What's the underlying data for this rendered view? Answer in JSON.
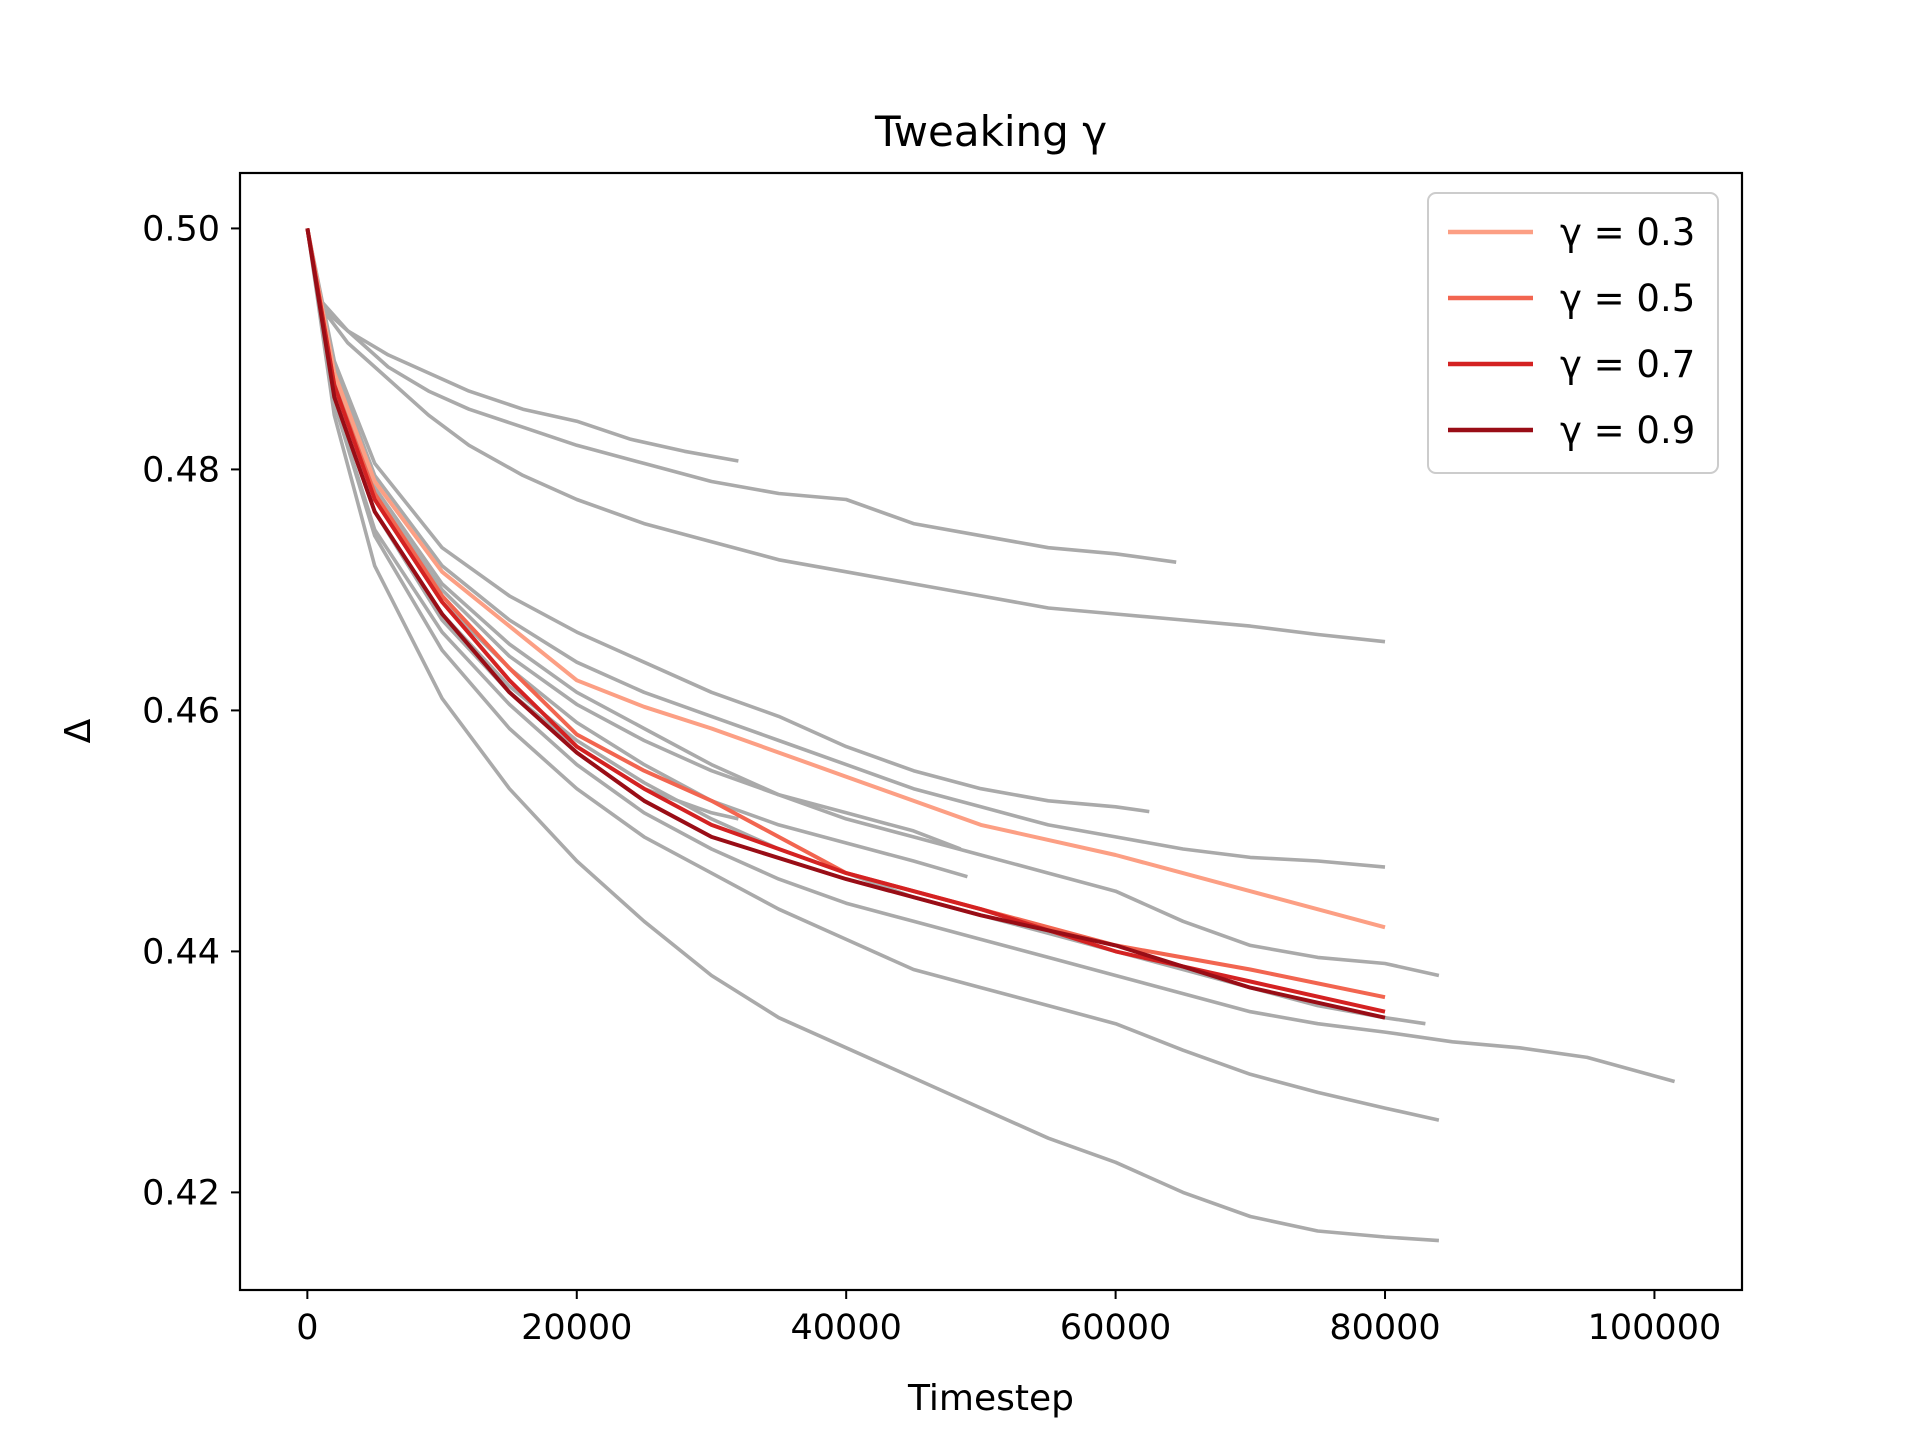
{
  "chart_data": {
    "type": "line",
    "title": "Tweaking γ",
    "xlabel": "Timestep",
    "ylabel": "Δ",
    "xlim": [
      -5000,
      106500
    ],
    "ylim": [
      0.4119,
      0.5046
    ],
    "x_ticks": [
      0,
      20000,
      40000,
      60000,
      80000,
      100000
    ],
    "x_tick_labels": [
      "0",
      "20000",
      "40000",
      "60000",
      "80000",
      "100000"
    ],
    "y_ticks": [
      0.42,
      0.44,
      0.46,
      0.48,
      0.5
    ],
    "y_tick_labels": [
      "0.42",
      "0.44",
      "0.46",
      "0.48",
      "0.50"
    ],
    "grid": false,
    "legend_position": "top-right",
    "series": [
      {
        "name": "γ = 0.3",
        "color": "#fc9f84",
        "x": [
          0,
          2000,
          5000,
          10000,
          15000,
          20000,
          25000,
          30000,
          40000,
          50000,
          60000,
          70000,
          80000
        ],
        "y": [
          0.5,
          0.488,
          0.479,
          0.4715,
          0.467,
          0.4625,
          0.4603,
          0.4585,
          0.4545,
          0.4505,
          0.448,
          0.445,
          0.442
        ]
      },
      {
        "name": "γ = 0.5",
        "color": "#f26550",
        "x": [
          0,
          2000,
          5000,
          10000,
          15000,
          20000,
          25000,
          30000,
          40000,
          50000,
          60000,
          70000,
          80000
        ],
        "y": [
          0.5,
          0.487,
          0.478,
          0.4695,
          0.4635,
          0.458,
          0.455,
          0.4525,
          0.4465,
          0.4435,
          0.4405,
          0.4385,
          0.4362
        ]
      },
      {
        "name": "γ = 0.7",
        "color": "#d42222",
        "x": [
          0,
          2000,
          5000,
          10000,
          15000,
          20000,
          25000,
          30000,
          40000,
          50000,
          60000,
          70000,
          80000
        ],
        "y": [
          0.5,
          0.487,
          0.4775,
          0.469,
          0.4625,
          0.457,
          0.4535,
          0.4505,
          0.4465,
          0.4435,
          0.44,
          0.4375,
          0.435
        ]
      },
      {
        "name": "γ = 0.9",
        "color": "#990d16",
        "x": [
          0,
          2000,
          5000,
          10000,
          15000,
          20000,
          25000,
          30000,
          40000,
          50000,
          60000,
          70000,
          80000
        ],
        "y": [
          0.5,
          0.486,
          0.4765,
          0.468,
          0.4615,
          0.4565,
          0.4525,
          0.4495,
          0.446,
          0.443,
          0.4405,
          0.437,
          0.4345
        ]
      }
    ],
    "background_series": [
      {
        "color": "#aaaaaa",
        "x": [
          0,
          1000,
          3000,
          6000,
          9000,
          12000,
          16000,
          20000,
          24000,
          28000,
          32000
        ],
        "y": [
          0.5,
          0.4935,
          0.4915,
          0.4895,
          0.488,
          0.4865,
          0.485,
          0.484,
          0.4825,
          0.4815,
          0.4807
        ]
      },
      {
        "color": "#aaaaaa",
        "x": [
          0,
          1000,
          3000,
          6000,
          9000,
          12000,
          16000,
          20000,
          25000,
          30000,
          35000,
          40000,
          45000,
          50000,
          55000,
          60000,
          64500
        ],
        "y": [
          0.5,
          0.494,
          0.4915,
          0.4885,
          0.4865,
          0.485,
          0.4835,
          0.482,
          0.4805,
          0.479,
          0.478,
          0.4775,
          0.4755,
          0.4745,
          0.4735,
          0.473,
          0.4723
        ]
      },
      {
        "color": "#aaaaaa",
        "x": [
          0,
          1000,
          3000,
          6000,
          9000,
          12000,
          16000,
          20000,
          25000,
          30000,
          35000,
          40000,
          45000,
          50000,
          55000,
          60000,
          65000,
          70000,
          75000,
          80000
        ],
        "y": [
          0.5,
          0.4935,
          0.4905,
          0.4875,
          0.4845,
          0.482,
          0.4795,
          0.4775,
          0.4755,
          0.474,
          0.4725,
          0.4715,
          0.4705,
          0.4695,
          0.4685,
          0.468,
          0.4675,
          0.467,
          0.4663,
          0.4657
        ]
      },
      {
        "color": "#aaaaaa",
        "x": [
          0,
          2000,
          5000,
          10000,
          15000,
          20000,
          25000,
          30000,
          35000,
          40000,
          45000,
          50000,
          55000,
          60000,
          62500
        ],
        "y": [
          0.5,
          0.489,
          0.4805,
          0.4735,
          0.4695,
          0.4665,
          0.464,
          0.4615,
          0.4595,
          0.457,
          0.455,
          0.4535,
          0.4525,
          0.452,
          0.4516
        ]
      },
      {
        "color": "#aaaaaa",
        "x": [
          0,
          2000,
          5000,
          10000,
          15000,
          20000,
          25000,
          30000,
          35000,
          40000,
          45000,
          50000,
          55000,
          60000,
          65000,
          70000,
          75000,
          80000
        ],
        "y": [
          0.5,
          0.4885,
          0.4795,
          0.472,
          0.4675,
          0.464,
          0.4615,
          0.4595,
          0.4575,
          0.4555,
          0.4535,
          0.452,
          0.4505,
          0.4495,
          0.4485,
          0.4478,
          0.4475,
          0.447
        ]
      },
      {
        "color": "#aaaaaa",
        "x": [
          0,
          2000,
          5000,
          10000,
          15000,
          20000,
          25000,
          30000,
          35000,
          40000,
          45000,
          50000,
          55000,
          60000,
          65000,
          70000,
          75000,
          80000,
          84000
        ],
        "y": [
          0.5,
          0.488,
          0.4785,
          0.4705,
          0.4655,
          0.4615,
          0.4585,
          0.4555,
          0.453,
          0.451,
          0.4495,
          0.448,
          0.4465,
          0.445,
          0.4425,
          0.4405,
          0.4395,
          0.439,
          0.438
        ]
      },
      {
        "color": "#aaaaaa",
        "x": [
          0,
          2000,
          5000,
          10000,
          15000,
          20000,
          25000,
          30000,
          35000,
          40000,
          45000,
          48500
        ],
        "y": [
          0.5,
          0.4875,
          0.478,
          0.47,
          0.4645,
          0.4605,
          0.4575,
          0.455,
          0.453,
          0.4515,
          0.45,
          0.4485
        ]
      },
      {
        "color": "#aaaaaa",
        "x": [
          0,
          2000,
          5000,
          10000,
          15000,
          20000,
          25000,
          30000,
          35000,
          40000,
          45000,
          49000
        ],
        "y": [
          0.5,
          0.487,
          0.4775,
          0.469,
          0.4635,
          0.459,
          0.4555,
          0.4525,
          0.4505,
          0.449,
          0.4475,
          0.4462
        ]
      },
      {
        "color": "#aaaaaa",
        "x": [
          0,
          2000,
          5000,
          10000,
          15000,
          20000,
          25000,
          30000,
          32000
        ],
        "y": [
          0.5,
          0.486,
          0.4765,
          0.4675,
          0.4615,
          0.457,
          0.4535,
          0.4515,
          0.451
        ]
      },
      {
        "color": "#aaaaaa",
        "x": [
          0,
          2000,
          5000,
          10000,
          15000,
          20000,
          25000,
          30000,
          35000,
          40000,
          45000,
          50000,
          55000,
          60000,
          65000,
          70000,
          75000,
          80000,
          83000
        ],
        "y": [
          0.5,
          0.486,
          0.4765,
          0.468,
          0.462,
          0.4575,
          0.454,
          0.451,
          0.4485,
          0.4465,
          0.4445,
          0.443,
          0.4415,
          0.44,
          0.4385,
          0.437,
          0.4355,
          0.4345,
          0.434
        ]
      },
      {
        "color": "#aaaaaa",
        "x": [
          0,
          2000,
          5000,
          10000,
          15000,
          20000,
          25000,
          30000,
          35000,
          40000,
          45000,
          50000,
          55000,
          60000,
          65000,
          70000,
          75000,
          80000,
          85000,
          90000,
          95000,
          101500
        ],
        "y": [
          0.5,
          0.4855,
          0.475,
          0.4665,
          0.4605,
          0.4555,
          0.4515,
          0.4485,
          0.446,
          0.444,
          0.4425,
          0.441,
          0.4395,
          0.438,
          0.4365,
          0.435,
          0.434,
          0.4333,
          0.4325,
          0.432,
          0.4312,
          0.4292
        ]
      },
      {
        "color": "#aaaaaa",
        "x": [
          0,
          2000,
          5000,
          10000,
          15000,
          20000,
          25000,
          30000,
          35000,
          40000,
          45000,
          50000,
          55000,
          60000,
          65000,
          70000,
          75000,
          80000,
          84000
        ],
        "y": [
          0.5,
          0.4855,
          0.4745,
          0.465,
          0.4585,
          0.4535,
          0.4495,
          0.4465,
          0.4435,
          0.441,
          0.4385,
          0.437,
          0.4355,
          0.434,
          0.4318,
          0.4298,
          0.4283,
          0.427,
          0.426
        ]
      },
      {
        "color": "#aaaaaa",
        "x": [
          0,
          2000,
          5000,
          10000,
          15000,
          20000,
          25000,
          30000,
          35000,
          40000,
          45000,
          50000,
          55000,
          60000,
          65000,
          70000,
          75000,
          80000,
          84000
        ],
        "y": [
          0.5,
          0.4845,
          0.472,
          0.461,
          0.4535,
          0.4475,
          0.4425,
          0.438,
          0.4345,
          0.432,
          0.4295,
          0.427,
          0.4245,
          0.4225,
          0.42,
          0.418,
          0.4168,
          0.4163,
          0.416
        ]
      }
    ]
  }
}
